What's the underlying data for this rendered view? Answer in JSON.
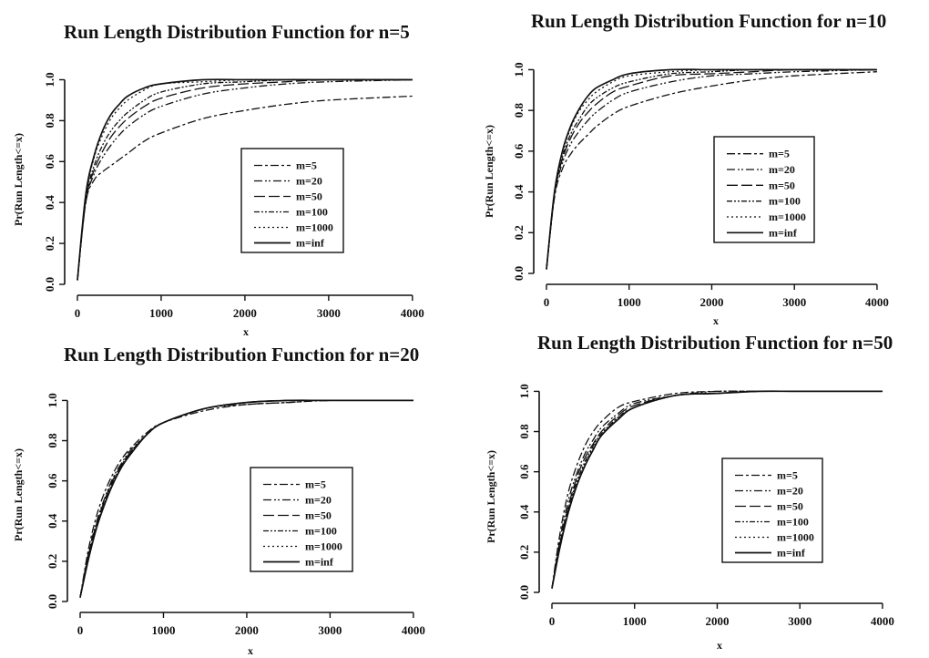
{
  "figure": {
    "background": "#ffffff",
    "ink": "#111111"
  },
  "chart_data": [
    {
      "type": "line",
      "title": "Run Length Distribution Function for n=5",
      "xlabel": "x",
      "ylabel": "Pr(Run Length<=x)",
      "xlim": [
        0,
        4100
      ],
      "ylim": [
        0,
        1.02
      ],
      "xticks": [
        "0",
        "1000",
        "2000",
        "3000",
        "4000"
      ],
      "yticks": [
        "0.0",
        "0.2",
        "0.4",
        "0.6",
        "0.8",
        "1.0"
      ],
      "grid": false,
      "legend_position": "center-right",
      "x": [
        0,
        100,
        200,
        300,
        400,
        500,
        600,
        800,
        1000,
        1500,
        2000,
        2500,
        3000,
        4000
      ],
      "series": [
        {
          "name": "m=5",
          "dash": "9 3 3 3",
          "values": [
            0.02,
            0.4,
            0.51,
            0.55,
            0.58,
            0.61,
            0.64,
            0.7,
            0.74,
            0.81,
            0.85,
            0.88,
            0.9,
            0.92
          ]
        },
        {
          "name": "m=20",
          "dash": "9 3 2 2 2 3",
          "values": [
            0.02,
            0.4,
            0.54,
            0.62,
            0.68,
            0.73,
            0.77,
            0.83,
            0.87,
            0.93,
            0.96,
            0.98,
            0.99,
            1.0
          ]
        },
        {
          "name": "m=50",
          "dash": "12 4",
          "values": [
            0.02,
            0.41,
            0.56,
            0.65,
            0.72,
            0.77,
            0.81,
            0.87,
            0.91,
            0.96,
            0.98,
            0.99,
            1.0,
            1.0
          ]
        },
        {
          "name": "m=100",
          "dash": "6 2 2 2 2 2",
          "values": [
            0.02,
            0.42,
            0.58,
            0.68,
            0.75,
            0.8,
            0.84,
            0.9,
            0.94,
            0.98,
            0.99,
            1.0,
            1.0,
            1.0
          ]
        },
        {
          "name": "m=1000",
          "dash": "2 3",
          "values": [
            0.02,
            0.43,
            0.62,
            0.73,
            0.81,
            0.86,
            0.9,
            0.95,
            0.98,
            0.99,
            1.0,
            1.0,
            1.0,
            1.0
          ]
        },
        {
          "name": "m=inf",
          "dash": "",
          "values": [
            0.02,
            0.44,
            0.63,
            0.75,
            0.83,
            0.88,
            0.92,
            0.96,
            0.98,
            1.0,
            1.0,
            1.0,
            1.0,
            1.0
          ]
        }
      ]
    },
    {
      "type": "line",
      "title": "Run Length Distribution Function for n=10",
      "xlabel": "x",
      "ylabel": "Pr(Run Length<=x)",
      "xlim": [
        0,
        4100
      ],
      "ylim": [
        0,
        1.02
      ],
      "xticks": [
        "0",
        "1000",
        "2000",
        "3000",
        "4000"
      ],
      "yticks": [
        "0.0",
        "0.2",
        "0.4",
        "0.6",
        "0.8",
        "1.0"
      ],
      "grid": false,
      "legend_position": "center-right",
      "x": [
        0,
        100,
        200,
        300,
        400,
        500,
        600,
        800,
        1000,
        1500,
        2000,
        2500,
        3000,
        4000
      ],
      "series": [
        {
          "name": "m=5",
          "dash": "9 3 3 3",
          "values": [
            0.02,
            0.38,
            0.52,
            0.59,
            0.64,
            0.68,
            0.72,
            0.78,
            0.82,
            0.88,
            0.92,
            0.95,
            0.97,
            0.99
          ]
        },
        {
          "name": "m=20",
          "dash": "9 3 2 2 2 3",
          "values": [
            0.02,
            0.39,
            0.55,
            0.64,
            0.7,
            0.75,
            0.79,
            0.85,
            0.89,
            0.94,
            0.97,
            0.98,
            0.99,
            1.0
          ]
        },
        {
          "name": "m=50",
          "dash": "12 4",
          "values": [
            0.02,
            0.4,
            0.57,
            0.67,
            0.74,
            0.79,
            0.83,
            0.89,
            0.92,
            0.97,
            0.98,
            0.99,
            1.0,
            1.0
          ]
        },
        {
          "name": "m=100",
          "dash": "6 2 2 2 2 2",
          "values": [
            0.02,
            0.4,
            0.58,
            0.69,
            0.76,
            0.82,
            0.86,
            0.91,
            0.94,
            0.98,
            0.99,
            1.0,
            1.0,
            1.0
          ]
        },
        {
          "name": "m=1000",
          "dash": "2 3",
          "values": [
            0.02,
            0.41,
            0.6,
            0.72,
            0.8,
            0.85,
            0.89,
            0.94,
            0.97,
            0.99,
            1.0,
            1.0,
            1.0,
            1.0
          ]
        },
        {
          "name": "m=inf",
          "dash": "",
          "values": [
            0.02,
            0.41,
            0.61,
            0.73,
            0.81,
            0.87,
            0.91,
            0.95,
            0.98,
            1.0,
            1.0,
            1.0,
            1.0,
            1.0
          ]
        }
      ]
    },
    {
      "type": "line",
      "title": "Run Length Distribution Function for n=20",
      "xlabel": "x",
      "ylabel": "Pr(Run Length<=x)",
      "xlim": [
        0,
        4100
      ],
      "ylim": [
        0,
        1.02
      ],
      "xticks": [
        "0",
        "1000",
        "2000",
        "3000",
        "4000"
      ],
      "yticks": [
        "0.0",
        "0.2",
        "0.4",
        "0.6",
        "0.8",
        "1.0"
      ],
      "grid": false,
      "legend_position": "center-right",
      "x": [
        0,
        100,
        200,
        300,
        400,
        500,
        600,
        800,
        1000,
        1500,
        2000,
        2500,
        3000,
        4000
      ],
      "series": [
        {
          "name": "m=5",
          "dash": "9 3 3 3",
          "values": [
            0.02,
            0.26,
            0.43,
            0.55,
            0.64,
            0.71,
            0.76,
            0.84,
            0.89,
            0.95,
            0.98,
            0.99,
            1.0,
            1.0
          ]
        },
        {
          "name": "m=20",
          "dash": "9 3 2 2 2 3",
          "values": [
            0.02,
            0.24,
            0.4,
            0.52,
            0.62,
            0.69,
            0.75,
            0.83,
            0.89,
            0.96,
            0.98,
            0.99,
            1.0,
            1.0
          ]
        },
        {
          "name": "m=50",
          "dash": "12 4",
          "values": [
            0.02,
            0.23,
            0.39,
            0.51,
            0.61,
            0.68,
            0.74,
            0.83,
            0.89,
            0.96,
            0.99,
            1.0,
            1.0,
            1.0
          ]
        },
        {
          "name": "m=100",
          "dash": "6 2 2 2 2 2",
          "values": [
            0.02,
            0.22,
            0.38,
            0.5,
            0.6,
            0.68,
            0.74,
            0.83,
            0.89,
            0.96,
            0.99,
            1.0,
            1.0,
            1.0
          ]
        },
        {
          "name": "m=1000",
          "dash": "2 3",
          "values": [
            0.02,
            0.21,
            0.37,
            0.49,
            0.59,
            0.67,
            0.74,
            0.83,
            0.89,
            0.96,
            0.99,
            1.0,
            1.0,
            1.0
          ]
        },
        {
          "name": "m=inf",
          "dash": "",
          "values": [
            0.02,
            0.21,
            0.37,
            0.49,
            0.59,
            0.67,
            0.73,
            0.83,
            0.89,
            0.96,
            0.99,
            1.0,
            1.0,
            1.0
          ]
        }
      ]
    },
    {
      "type": "line",
      "title": "Run Length Distribution Function for n=50",
      "xlabel": "x",
      "ylabel": "Pr(Run Length<=x)",
      "xlim": [
        0,
        4100
      ],
      "ylim": [
        0,
        1.02
      ],
      "xticks": [
        "0",
        "1000",
        "2000",
        "3000",
        "4000"
      ],
      "yticks": [
        "0.0",
        "0.2",
        "0.4",
        "0.6",
        "0.8",
        "1.0"
      ],
      "grid": false,
      "legend_position": "center-right",
      "x": [
        0,
        100,
        200,
        300,
        400,
        500,
        600,
        800,
        1000,
        1500,
        2000,
        2500,
        3000,
        4000
      ],
      "series": [
        {
          "name": "m=5",
          "dash": "9 3 3 3",
          "values": [
            0.02,
            0.3,
            0.5,
            0.63,
            0.73,
            0.8,
            0.85,
            0.92,
            0.95,
            0.99,
            1.0,
            1.0,
            1.0,
            1.0
          ]
        },
        {
          "name": "m=20",
          "dash": "9 3 2 2 2 3",
          "values": [
            0.02,
            0.27,
            0.46,
            0.59,
            0.69,
            0.76,
            0.82,
            0.89,
            0.94,
            0.98,
            1.0,
            1.0,
            1.0,
            1.0
          ]
        },
        {
          "name": "m=50",
          "dash": "12 4",
          "values": [
            0.02,
            0.25,
            0.43,
            0.57,
            0.67,
            0.74,
            0.8,
            0.88,
            0.93,
            0.98,
            0.99,
            1.0,
            1.0,
            1.0
          ]
        },
        {
          "name": "m=100",
          "dash": "6 2 2 2 2 2",
          "values": [
            0.02,
            0.24,
            0.42,
            0.55,
            0.65,
            0.73,
            0.79,
            0.87,
            0.92,
            0.98,
            0.99,
            1.0,
            1.0,
            1.0
          ]
        },
        {
          "name": "m=1000",
          "dash": "2 3",
          "values": [
            0.02,
            0.23,
            0.41,
            0.54,
            0.64,
            0.72,
            0.78,
            0.87,
            0.92,
            0.98,
            0.99,
            1.0,
            1.0,
            1.0
          ]
        },
        {
          "name": "m=inf",
          "dash": "",
          "values": [
            0.02,
            0.23,
            0.4,
            0.53,
            0.63,
            0.71,
            0.78,
            0.86,
            0.92,
            0.98,
            0.99,
            1.0,
            1.0,
            1.0
          ]
        }
      ]
    }
  ]
}
